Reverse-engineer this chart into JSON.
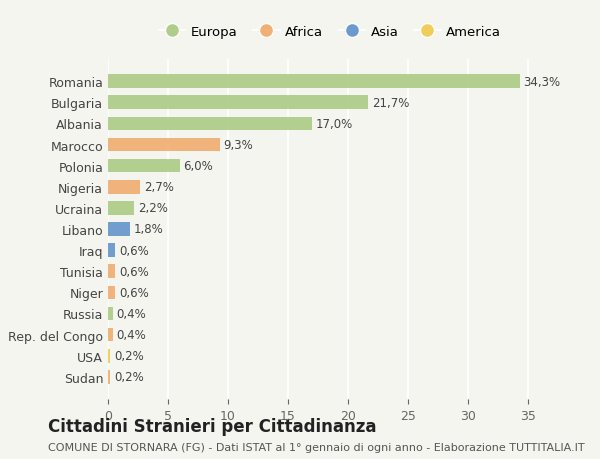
{
  "countries": [
    "Romania",
    "Bulgaria",
    "Albania",
    "Marocco",
    "Polonia",
    "Nigeria",
    "Ucraina",
    "Libano",
    "Iraq",
    "Tunisia",
    "Niger",
    "Russia",
    "Rep. del Congo",
    "USA",
    "Sudan"
  ],
  "values": [
    34.3,
    21.7,
    17.0,
    9.3,
    6.0,
    2.7,
    2.2,
    1.8,
    0.6,
    0.6,
    0.6,
    0.4,
    0.4,
    0.2,
    0.2
  ],
  "labels": [
    "34,3%",
    "21,7%",
    "17,0%",
    "9,3%",
    "6,0%",
    "2,7%",
    "2,2%",
    "1,8%",
    "0,6%",
    "0,6%",
    "0,6%",
    "0,4%",
    "0,4%",
    "0,2%",
    "0,2%"
  ],
  "continents": [
    "Europa",
    "Europa",
    "Europa",
    "Africa",
    "Europa",
    "Africa",
    "Europa",
    "Asia",
    "Asia",
    "Africa",
    "Africa",
    "Europa",
    "Africa",
    "America",
    "Africa"
  ],
  "continent_colors": {
    "Europa": "#a8c97f",
    "Africa": "#f0a868",
    "Asia": "#5b8fc9",
    "America": "#f0c84a"
  },
  "legend_order": [
    "Europa",
    "Africa",
    "Asia",
    "America"
  ],
  "title": "Cittadini Stranieri per Cittadinanza",
  "subtitle": "COMUNE DI STORNARA (FG) - Dati ISTAT al 1° gennaio di ogni anno - Elaborazione TUTTITALIA.IT",
  "xlim": [
    0,
    37
  ],
  "xticks": [
    0,
    5,
    10,
    15,
    20,
    25,
    30,
    35
  ],
  "background_color": "#f5f5f0",
  "bar_height": 0.65,
  "label_fontsize": 8.5,
  "title_fontsize": 12,
  "subtitle_fontsize": 8
}
